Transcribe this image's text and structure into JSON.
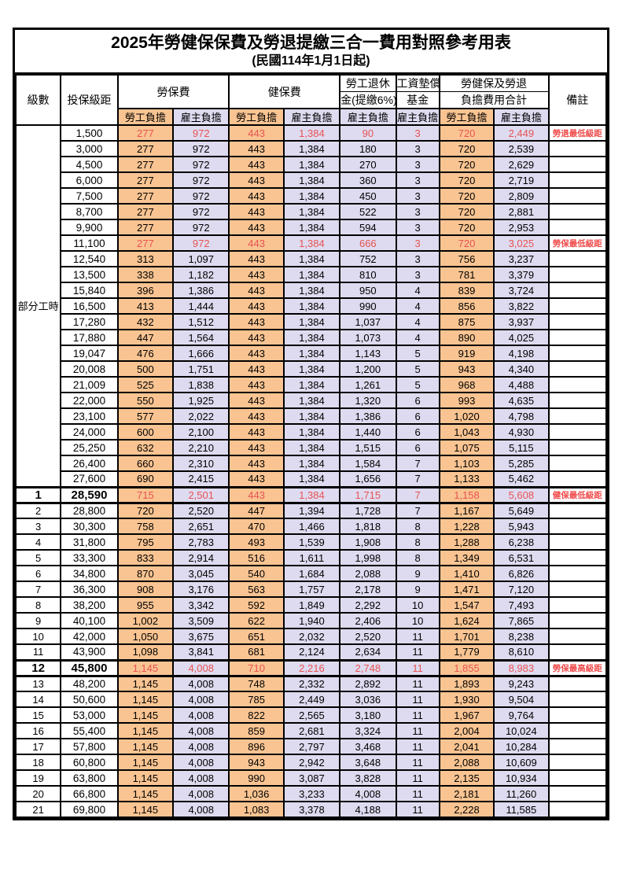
{
  "title": "2025年勞健保保費及勞退提繳三合一費用對照參考用表",
  "subtitle": "(民國114年1月1日起)",
  "header": {
    "level": "級數",
    "bracket": "投保級距",
    "labor_insurance": "勞保費",
    "health_insurance": "健保費",
    "pension_line1": "勞工退休",
    "pension_line2": "金(提繳6%)",
    "wage_fund_line1": "工資墊償",
    "wage_fund_line2": "基金",
    "total_line1": "勞健保及勞退",
    "total_line2": "負擔費用合計",
    "remark": "備註",
    "employee_label": "勞工負擔",
    "employer_label": "雇主負擔"
  },
  "group_label": "部分工時",
  "group_rowspan": 23,
  "colors": {
    "employee_bg": "#f9c492",
    "employer_bg": "#dedbf0",
    "highlight_red": "#e85252",
    "remark_red": "#f04a4a",
    "border": "#000000"
  },
  "rows": [
    {
      "level": "",
      "bracket": "1,500",
      "li_emp": "277",
      "li_er": "972",
      "hi_emp": "443",
      "hi_er": "1,384",
      "pension": "90",
      "fund": "3",
      "tot_emp": "720",
      "tot_er": "2,449",
      "remark": "勞退最低級距",
      "red": true,
      "bold": false,
      "sep": false
    },
    {
      "level": "",
      "bracket": "3,000",
      "li_emp": "277",
      "li_er": "972",
      "hi_emp": "443",
      "hi_er": "1,384",
      "pension": "180",
      "fund": "3",
      "tot_emp": "720",
      "tot_er": "2,539",
      "remark": "",
      "red": false,
      "bold": false,
      "sep": false
    },
    {
      "level": "",
      "bracket": "4,500",
      "li_emp": "277",
      "li_er": "972",
      "hi_emp": "443",
      "hi_er": "1,384",
      "pension": "270",
      "fund": "3",
      "tot_emp": "720",
      "tot_er": "2,629",
      "remark": "",
      "red": false,
      "bold": false,
      "sep": false
    },
    {
      "level": "",
      "bracket": "6,000",
      "li_emp": "277",
      "li_er": "972",
      "hi_emp": "443",
      "hi_er": "1,384",
      "pension": "360",
      "fund": "3",
      "tot_emp": "720",
      "tot_er": "2,719",
      "remark": "",
      "red": false,
      "bold": false,
      "sep": false
    },
    {
      "level": "",
      "bracket": "7,500",
      "li_emp": "277",
      "li_er": "972",
      "hi_emp": "443",
      "hi_er": "1,384",
      "pension": "450",
      "fund": "3",
      "tot_emp": "720",
      "tot_er": "2,809",
      "remark": "",
      "red": false,
      "bold": false,
      "sep": false
    },
    {
      "level": "",
      "bracket": "8,700",
      "li_emp": "277",
      "li_er": "972",
      "hi_emp": "443",
      "hi_er": "1,384",
      "pension": "522",
      "fund": "3",
      "tot_emp": "720",
      "tot_er": "2,881",
      "remark": "",
      "red": false,
      "bold": false,
      "sep": false
    },
    {
      "level": "",
      "bracket": "9,900",
      "li_emp": "277",
      "li_er": "972",
      "hi_emp": "443",
      "hi_er": "1,384",
      "pension": "594",
      "fund": "3",
      "tot_emp": "720",
      "tot_er": "2,953",
      "remark": "",
      "red": false,
      "bold": false,
      "sep": false
    },
    {
      "level": "",
      "bracket": "11,100",
      "li_emp": "277",
      "li_er": "972",
      "hi_emp": "443",
      "hi_er": "1,384",
      "pension": "666",
      "fund": "3",
      "tot_emp": "720",
      "tot_er": "3,025",
      "remark": "勞保最低級距",
      "red": true,
      "bold": false,
      "sep": false
    },
    {
      "level": "",
      "bracket": "12,540",
      "li_emp": "313",
      "li_er": "1,097",
      "hi_emp": "443",
      "hi_er": "1,384",
      "pension": "752",
      "fund": "3",
      "tot_emp": "756",
      "tot_er": "3,237",
      "remark": "",
      "red": false,
      "bold": false,
      "sep": false
    },
    {
      "level": "",
      "bracket": "13,500",
      "li_emp": "338",
      "li_er": "1,182",
      "hi_emp": "443",
      "hi_er": "1,384",
      "pension": "810",
      "fund": "3",
      "tot_emp": "781",
      "tot_er": "3,379",
      "remark": "",
      "red": false,
      "bold": false,
      "sep": false
    },
    {
      "level": "",
      "bracket": "15,840",
      "li_emp": "396",
      "li_er": "1,386",
      "hi_emp": "443",
      "hi_er": "1,384",
      "pension": "950",
      "fund": "4",
      "tot_emp": "839",
      "tot_er": "3,724",
      "remark": "",
      "red": false,
      "bold": false,
      "sep": false
    },
    {
      "level": "",
      "bracket": "16,500",
      "li_emp": "413",
      "li_er": "1,444",
      "hi_emp": "443",
      "hi_er": "1,384",
      "pension": "990",
      "fund": "4",
      "tot_emp": "856",
      "tot_er": "3,822",
      "remark": "",
      "red": false,
      "bold": false,
      "sep": false
    },
    {
      "level": "",
      "bracket": "17,280",
      "li_emp": "432",
      "li_er": "1,512",
      "hi_emp": "443",
      "hi_er": "1,384",
      "pension": "1,037",
      "fund": "4",
      "tot_emp": "875",
      "tot_er": "3,937",
      "remark": "",
      "red": false,
      "bold": false,
      "sep": false
    },
    {
      "level": "",
      "bracket": "17,880",
      "li_emp": "447",
      "li_er": "1,564",
      "hi_emp": "443",
      "hi_er": "1,384",
      "pension": "1,073",
      "fund": "4",
      "tot_emp": "890",
      "tot_er": "4,025",
      "remark": "",
      "red": false,
      "bold": false,
      "sep": false
    },
    {
      "level": "",
      "bracket": "19,047",
      "li_emp": "476",
      "li_er": "1,666",
      "hi_emp": "443",
      "hi_er": "1,384",
      "pension": "1,143",
      "fund": "5",
      "tot_emp": "919",
      "tot_er": "4,198",
      "remark": "",
      "red": false,
      "bold": false,
      "sep": false
    },
    {
      "level": "",
      "bracket": "20,008",
      "li_emp": "500",
      "li_er": "1,751",
      "hi_emp": "443",
      "hi_er": "1,384",
      "pension": "1,200",
      "fund": "5",
      "tot_emp": "943",
      "tot_er": "4,340",
      "remark": "",
      "red": false,
      "bold": false,
      "sep": false
    },
    {
      "level": "",
      "bracket": "21,009",
      "li_emp": "525",
      "li_er": "1,838",
      "hi_emp": "443",
      "hi_er": "1,384",
      "pension": "1,261",
      "fund": "5",
      "tot_emp": "968",
      "tot_er": "4,488",
      "remark": "",
      "red": false,
      "bold": false,
      "sep": false
    },
    {
      "level": "",
      "bracket": "22,000",
      "li_emp": "550",
      "li_er": "1,925",
      "hi_emp": "443",
      "hi_er": "1,384",
      "pension": "1,320",
      "fund": "6",
      "tot_emp": "993",
      "tot_er": "4,635",
      "remark": "",
      "red": false,
      "bold": false,
      "sep": false
    },
    {
      "level": "",
      "bracket": "23,100",
      "li_emp": "577",
      "li_er": "2,022",
      "hi_emp": "443",
      "hi_er": "1,384",
      "pension": "1,386",
      "fund": "6",
      "tot_emp": "1,020",
      "tot_er": "4,798",
      "remark": "",
      "red": false,
      "bold": false,
      "sep": false
    },
    {
      "level": "",
      "bracket": "24,000",
      "li_emp": "600",
      "li_er": "2,100",
      "hi_emp": "443",
      "hi_er": "1,384",
      "pension": "1,440",
      "fund": "6",
      "tot_emp": "1,043",
      "tot_er": "4,930",
      "remark": "",
      "red": false,
      "bold": false,
      "sep": false
    },
    {
      "level": "",
      "bracket": "25,250",
      "li_emp": "632",
      "li_er": "2,210",
      "hi_emp": "443",
      "hi_er": "1,384",
      "pension": "1,515",
      "fund": "6",
      "tot_emp": "1,075",
      "tot_er": "5,115",
      "remark": "",
      "red": false,
      "bold": false,
      "sep": false
    },
    {
      "level": "",
      "bracket": "26,400",
      "li_emp": "660",
      "li_er": "2,310",
      "hi_emp": "443",
      "hi_er": "1,384",
      "pension": "1,584",
      "fund": "7",
      "tot_emp": "1,103",
      "tot_er": "5,285",
      "remark": "",
      "red": false,
      "bold": false,
      "sep": false
    },
    {
      "level": "",
      "bracket": "27,600",
      "li_emp": "690",
      "li_er": "2,415",
      "hi_emp": "443",
      "hi_er": "1,384",
      "pension": "1,656",
      "fund": "7",
      "tot_emp": "1,133",
      "tot_er": "5,462",
      "remark": "",
      "red": false,
      "bold": false,
      "sep": false
    },
    {
      "level": "1",
      "bracket": "28,590",
      "li_emp": "715",
      "li_er": "2,501",
      "hi_emp": "443",
      "hi_er": "1,384",
      "pension": "1,715",
      "fund": "7",
      "tot_emp": "1,158",
      "tot_er": "5,608",
      "remark": "健保最低級距",
      "red": true,
      "bold": true,
      "sep": true
    },
    {
      "level": "2",
      "bracket": "28,800",
      "li_emp": "720",
      "li_er": "2,520",
      "hi_emp": "447",
      "hi_er": "1,394",
      "pension": "1,728",
      "fund": "7",
      "tot_emp": "1,167",
      "tot_er": "5,649",
      "remark": "",
      "red": false,
      "bold": false,
      "sep": true
    },
    {
      "level": "3",
      "bracket": "30,300",
      "li_emp": "758",
      "li_er": "2,651",
      "hi_emp": "470",
      "hi_er": "1,466",
      "pension": "1,818",
      "fund": "8",
      "tot_emp": "1,228",
      "tot_er": "5,943",
      "remark": "",
      "red": false,
      "bold": false,
      "sep": false
    },
    {
      "level": "4",
      "bracket": "31,800",
      "li_emp": "795",
      "li_er": "2,783",
      "hi_emp": "493",
      "hi_er": "1,539",
      "pension": "1,908",
      "fund": "8",
      "tot_emp": "1,288",
      "tot_er": "6,238",
      "remark": "",
      "red": false,
      "bold": false,
      "sep": false
    },
    {
      "level": "5",
      "bracket": "33,300",
      "li_emp": "833",
      "li_er": "2,914",
      "hi_emp": "516",
      "hi_er": "1,611",
      "pension": "1,998",
      "fund": "8",
      "tot_emp": "1,349",
      "tot_er": "6,531",
      "remark": "",
      "red": false,
      "bold": false,
      "sep": false
    },
    {
      "level": "6",
      "bracket": "34,800",
      "li_emp": "870",
      "li_er": "3,045",
      "hi_emp": "540",
      "hi_er": "1,684",
      "pension": "2,088",
      "fund": "9",
      "tot_emp": "1,410",
      "tot_er": "6,826",
      "remark": "",
      "red": false,
      "bold": false,
      "sep": false
    },
    {
      "level": "7",
      "bracket": "36,300",
      "li_emp": "908",
      "li_er": "3,176",
      "hi_emp": "563",
      "hi_er": "1,757",
      "pension": "2,178",
      "fund": "9",
      "tot_emp": "1,471",
      "tot_er": "7,120",
      "remark": "",
      "red": false,
      "bold": false,
      "sep": false
    },
    {
      "level": "8",
      "bracket": "38,200",
      "li_emp": "955",
      "li_er": "3,342",
      "hi_emp": "592",
      "hi_er": "1,849",
      "pension": "2,292",
      "fund": "10",
      "tot_emp": "1,547",
      "tot_er": "7,493",
      "remark": "",
      "red": false,
      "bold": false,
      "sep": false
    },
    {
      "level": "9",
      "bracket": "40,100",
      "li_emp": "1,002",
      "li_er": "3,509",
      "hi_emp": "622",
      "hi_er": "1,940",
      "pension": "2,406",
      "fund": "10",
      "tot_emp": "1,624",
      "tot_er": "7,865",
      "remark": "",
      "red": false,
      "bold": false,
      "sep": false
    },
    {
      "level": "10",
      "bracket": "42,000",
      "li_emp": "1,050",
      "li_er": "3,675",
      "hi_emp": "651",
      "hi_er": "2,032",
      "pension": "2,520",
      "fund": "11",
      "tot_emp": "1,701",
      "tot_er": "8,238",
      "remark": "",
      "red": false,
      "bold": false,
      "sep": false
    },
    {
      "level": "11",
      "bracket": "43,900",
      "li_emp": "1,098",
      "li_er": "3,841",
      "hi_emp": "681",
      "hi_er": "2,124",
      "pension": "2,634",
      "fund": "11",
      "tot_emp": "1,779",
      "tot_er": "8,610",
      "remark": "",
      "red": false,
      "bold": false,
      "sep": false
    },
    {
      "level": "12",
      "bracket": "45,800",
      "li_emp": "1,145",
      "li_er": "4,008",
      "hi_emp": "710",
      "hi_er": "2,216",
      "pension": "2,748",
      "fund": "11",
      "tot_emp": "1,855",
      "tot_er": "8,983",
      "remark": "勞保最高級距",
      "red": true,
      "bold": true,
      "sep": true
    },
    {
      "level": "13",
      "bracket": "48,200",
      "li_emp": "1,145",
      "li_er": "4,008",
      "hi_emp": "748",
      "hi_er": "2,332",
      "pension": "2,892",
      "fund": "11",
      "tot_emp": "1,893",
      "tot_er": "9,243",
      "remark": "",
      "red": false,
      "bold": false,
      "sep": true
    },
    {
      "level": "14",
      "bracket": "50,600",
      "li_emp": "1,145",
      "li_er": "4,008",
      "hi_emp": "785",
      "hi_er": "2,449",
      "pension": "3,036",
      "fund": "11",
      "tot_emp": "1,930",
      "tot_er": "9,504",
      "remark": "",
      "red": false,
      "bold": false,
      "sep": false
    },
    {
      "level": "15",
      "bracket": "53,000",
      "li_emp": "1,145",
      "li_er": "4,008",
      "hi_emp": "822",
      "hi_er": "2,565",
      "pension": "3,180",
      "fund": "11",
      "tot_emp": "1,967",
      "tot_er": "9,764",
      "remark": "",
      "red": false,
      "bold": false,
      "sep": false
    },
    {
      "level": "16",
      "bracket": "55,400",
      "li_emp": "1,145",
      "li_er": "4,008",
      "hi_emp": "859",
      "hi_er": "2,681",
      "pension": "3,324",
      "fund": "11",
      "tot_emp": "2,004",
      "tot_er": "10,024",
      "remark": "",
      "red": false,
      "bold": false,
      "sep": false
    },
    {
      "level": "17",
      "bracket": "57,800",
      "li_emp": "1,145",
      "li_er": "4,008",
      "hi_emp": "896",
      "hi_er": "2,797",
      "pension": "3,468",
      "fund": "11",
      "tot_emp": "2,041",
      "tot_er": "10,284",
      "remark": "",
      "red": false,
      "bold": false,
      "sep": false
    },
    {
      "level": "18",
      "bracket": "60,800",
      "li_emp": "1,145",
      "li_er": "4,008",
      "hi_emp": "943",
      "hi_er": "2,942",
      "pension": "3,648",
      "fund": "11",
      "tot_emp": "2,088",
      "tot_er": "10,609",
      "remark": "",
      "red": false,
      "bold": false,
      "sep": false
    },
    {
      "level": "19",
      "bracket": "63,800",
      "li_emp": "1,145",
      "li_er": "4,008",
      "hi_emp": "990",
      "hi_er": "3,087",
      "pension": "3,828",
      "fund": "11",
      "tot_emp": "2,135",
      "tot_er": "10,934",
      "remark": "",
      "red": false,
      "bold": false,
      "sep": false
    },
    {
      "level": "20",
      "bracket": "66,800",
      "li_emp": "1,145",
      "li_er": "4,008",
      "hi_emp": "1,036",
      "hi_er": "3,233",
      "pension": "4,008",
      "fund": "11",
      "tot_emp": "2,181",
      "tot_er": "11,260",
      "remark": "",
      "red": false,
      "bold": false,
      "sep": false
    },
    {
      "level": "21",
      "bracket": "69,800",
      "li_emp": "1,145",
      "li_er": "4,008",
      "hi_emp": "1,083",
      "hi_er": "3,378",
      "pension": "4,188",
      "fund": "11",
      "tot_emp": "2,228",
      "tot_er": "11,585",
      "remark": "",
      "red": false,
      "bold": false,
      "sep": false
    }
  ]
}
